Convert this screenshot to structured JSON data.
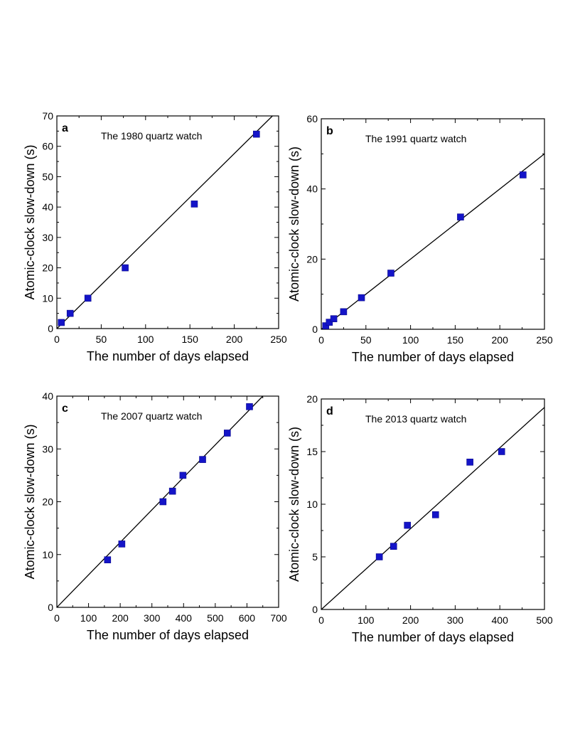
{
  "chart_data": [
    {
      "type": "scatter",
      "panel": "a",
      "title": "The 1980 quartz watch",
      "xlabel": "The number of days elapsed",
      "ylabel": "Atomic-clock slow-down (s)",
      "xlim": [
        0,
        250
      ],
      "ylim": [
        0,
        70
      ],
      "xticks": [
        0,
        50,
        100,
        150,
        200,
        250
      ],
      "yticks": [
        0,
        10,
        20,
        30,
        40,
        50,
        60,
        70
      ],
      "points": [
        [
          5,
          2
        ],
        [
          15,
          5
        ],
        [
          35,
          10
        ],
        [
          77,
          20
        ],
        [
          155,
          41
        ],
        [
          225,
          64
        ]
      ],
      "fit_line": [
        [
          0,
          0
        ],
        [
          250,
          72
        ]
      ],
      "marker_color": "#1414c8"
    },
    {
      "type": "scatter",
      "panel": "b",
      "title": "The 1991 quartz watch",
      "xlabel": "The number of days elapsed",
      "ylabel": "Atomic-clock slow-down (s)",
      "xlim": [
        0,
        250
      ],
      "ylim": [
        0,
        60
      ],
      "xticks": [
        0,
        50,
        100,
        150,
        200,
        250
      ],
      "yticks": [
        0,
        20,
        40,
        60
      ],
      "points": [
        [
          5,
          1
        ],
        [
          9,
          2
        ],
        [
          14,
          3
        ],
        [
          25,
          5
        ],
        [
          45,
          9
        ],
        [
          78,
          16
        ],
        [
          156,
          32
        ],
        [
          226,
          44
        ]
      ],
      "fit_line": [
        [
          0,
          0
        ],
        [
          250,
          50
        ]
      ],
      "marker_color": "#1414c8"
    },
    {
      "type": "scatter",
      "panel": "c",
      "title": "The 2007 quartz watch",
      "xlabel": "The number of days elapsed",
      "ylabel": "Atomic-clock slow-down (s)",
      "xlim": [
        0,
        700
      ],
      "ylim": [
        0,
        40
      ],
      "xticks": [
        0,
        100,
        200,
        300,
        400,
        500,
        600,
        700
      ],
      "yticks": [
        0,
        10,
        20,
        30,
        40
      ],
      "points": [
        [
          160,
          9
        ],
        [
          205,
          12
        ],
        [
          335,
          20
        ],
        [
          365,
          22
        ],
        [
          398,
          25
        ],
        [
          460,
          28
        ],
        [
          538,
          33
        ],
        [
          608,
          38
        ]
      ],
      "fit_line": [
        [
          0,
          0
        ],
        [
          650,
          40
        ]
      ],
      "marker_color": "#1414c8"
    },
    {
      "type": "scatter",
      "panel": "d",
      "title": "The 2013 quartz watch",
      "xlabel": "The number of days elapsed",
      "ylabel": "Atomic-clock slow-down (s)",
      "xlim": [
        0,
        500
      ],
      "ylim": [
        0,
        20
      ],
      "xticks": [
        0,
        100,
        200,
        300,
        400,
        500
      ],
      "yticks": [
        0,
        5,
        10,
        15,
        20
      ],
      "points": [
        [
          130,
          5
        ],
        [
          162,
          6
        ],
        [
          193,
          8
        ],
        [
          256,
          9
        ],
        [
          333,
          14
        ],
        [
          404,
          15
        ]
      ],
      "fit_line": [
        [
          0,
          0
        ],
        [
          500,
          19.2
        ]
      ],
      "marker_color": "#1414c8"
    }
  ]
}
